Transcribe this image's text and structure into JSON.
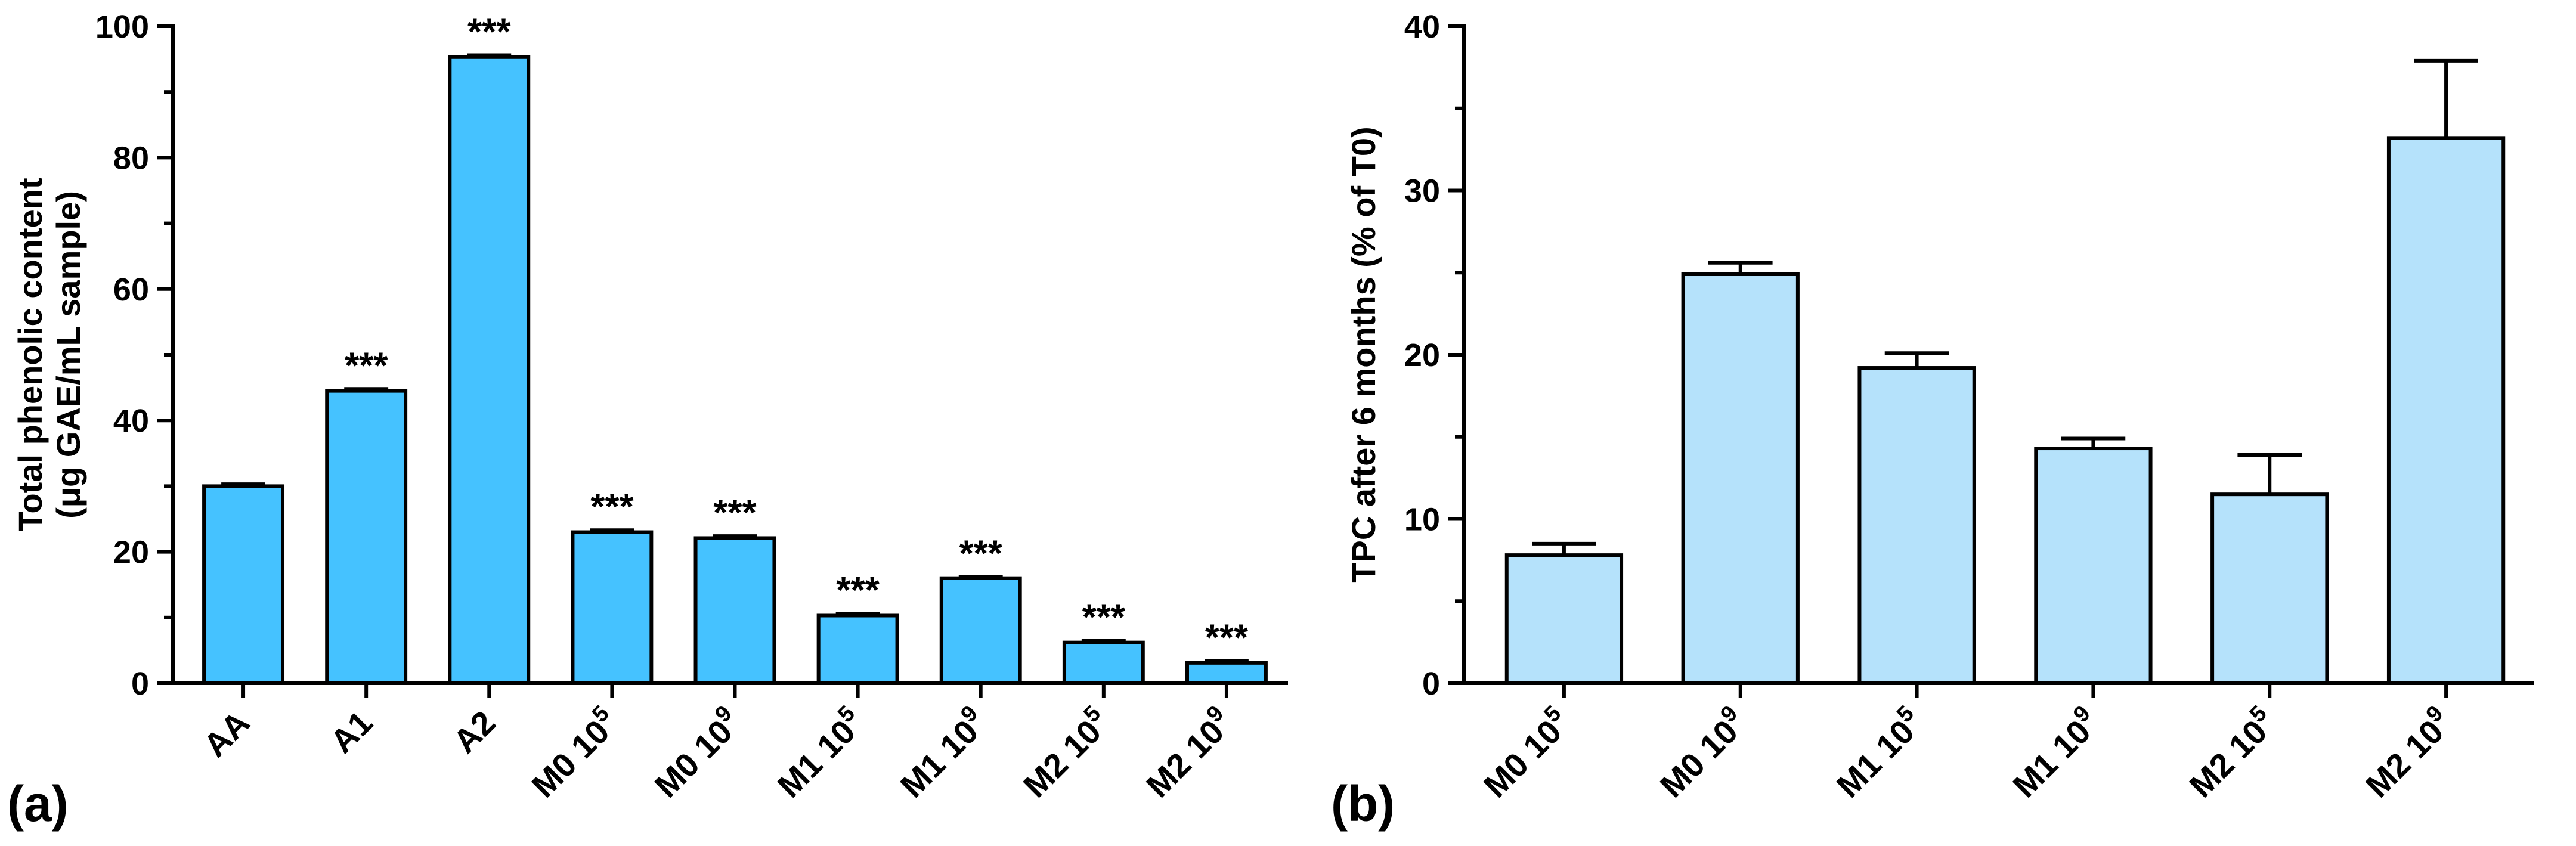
{
  "figure": {
    "panel_a_label": "(a)",
    "panel_b_label": "(b)"
  },
  "chart_data": [
    {
      "type": "bar",
      "panel": "(a)",
      "ylabel_line1": "Total phenolic content",
      "ylabel_line2": "(μg GAE/mL sample)",
      "xlabel": "",
      "ylim": [
        0,
        100
      ],
      "yticks": [
        0,
        20,
        40,
        60,
        80,
        100
      ],
      "categories": [
        {
          "base": "AA",
          "exp": ""
        },
        {
          "base": "A1",
          "exp": ""
        },
        {
          "base": "A2",
          "exp": ""
        },
        {
          "base": "M0 10",
          "exp": "5"
        },
        {
          "base": "M0 10",
          "exp": "9"
        },
        {
          "base": "M1 10",
          "exp": "5"
        },
        {
          "base": "M1 10",
          "exp": "9"
        },
        {
          "base": "M2 10",
          "exp": "5"
        },
        {
          "base": "M2 10",
          "exp": "9"
        }
      ],
      "values": [
        30.0,
        44.5,
        95.3,
        23.0,
        22.1,
        10.3,
        16.0,
        6.2,
        3.1
      ],
      "errors": [
        0.3,
        0.3,
        0.3,
        0.3,
        0.3,
        0.3,
        0.2,
        0.3,
        0.3
      ],
      "annotations": [
        "",
        "***",
        "***",
        "***",
        "***",
        "***",
        "***",
        "***",
        "***"
      ],
      "bar_color": "#45C2FF"
    },
    {
      "type": "bar",
      "panel": "(b)",
      "ylabel_line1": "TPC after 6 months (% of T0)",
      "xlabel": "",
      "ylim": [
        0,
        40
      ],
      "yticks": [
        0,
        10,
        20,
        30,
        40
      ],
      "categories": [
        {
          "base": "M0 10",
          "exp": "5"
        },
        {
          "base": "M0 10",
          "exp": "9"
        },
        {
          "base": "M1 10",
          "exp": "5"
        },
        {
          "base": "M1 10",
          "exp": "9"
        },
        {
          "base": "M2 10",
          "exp": "5"
        },
        {
          "base": "M2 10",
          "exp": "9"
        }
      ],
      "values": [
        7.8,
        24.9,
        19.2,
        14.3,
        11.5,
        33.2
      ],
      "errors": [
        0.7,
        0.7,
        0.9,
        0.6,
        2.4,
        4.7
      ],
      "bar_color": "#B5E2FB"
    }
  ]
}
